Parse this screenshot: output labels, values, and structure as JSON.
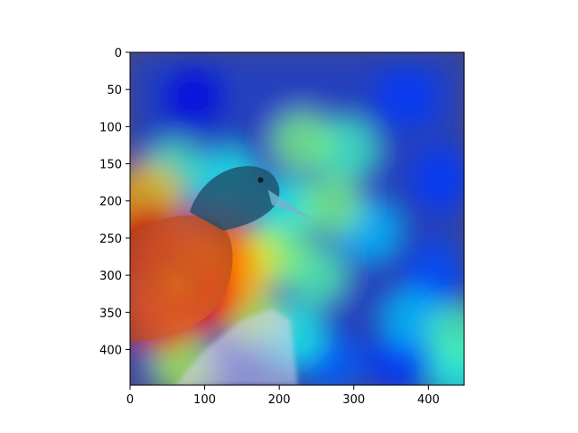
{
  "chart_data": {
    "type": "heatmap",
    "title": "",
    "xlabel": "",
    "ylabel": "",
    "xlim": [
      0,
      448
    ],
    "ylim": [
      448,
      0
    ],
    "x_ticks": [
      0,
      100,
      200,
      300,
      400
    ],
    "y_ticks": [
      0,
      50,
      100,
      150,
      200,
      250,
      300,
      350,
      400
    ],
    "x_tick_labels": [
      "0",
      "100",
      "200",
      "300",
      "400"
    ],
    "y_tick_labels": [
      "0",
      "50",
      "100",
      "150",
      "200",
      "250",
      "300",
      "350",
      "400"
    ],
    "grid": false,
    "legend": "none",
    "colormap": "jet",
    "image_content": "bird",
    "overlay_alpha": 0.5,
    "colors": {
      "background": "#ffffff",
      "axes": "#000000",
      "image_base": "#4a4a7a",
      "bird_head": "#1f4f6a",
      "bird_beak": "#6fb6d0",
      "bird_body": "#e0782a",
      "perch": "#d9d4ea"
    },
    "heat_hotspots": [
      {
        "x": 60,
        "y": 300,
        "intensity": 1.0
      },
      {
        "x": 25,
        "y": 260,
        "intensity": 0.92
      },
      {
        "x": 95,
        "y": 330,
        "intensity": 0.88
      },
      {
        "x": 40,
        "y": 350,
        "intensity": 0.85
      },
      {
        "x": 110,
        "y": 260,
        "intensity": 0.78
      },
      {
        "x": 130,
        "y": 300,
        "intensity": 0.72
      },
      {
        "x": 20,
        "y": 200,
        "intensity": 0.7
      },
      {
        "x": 160,
        "y": 280,
        "intensity": 0.6
      },
      {
        "x": 160,
        "y": 350,
        "intensity": 0.55
      },
      {
        "x": 200,
        "y": 270,
        "intensity": 0.5
      },
      {
        "x": 250,
        "y": 300,
        "intensity": 0.46
      },
      {
        "x": 270,
        "y": 205,
        "intensity": 0.5
      },
      {
        "x": 230,
        "y": 120,
        "intensity": 0.5
      },
      {
        "x": 290,
        "y": 130,
        "intensity": 0.44
      },
      {
        "x": 60,
        "y": 160,
        "intensity": 0.45
      },
      {
        "x": 130,
        "y": 170,
        "intensity": 0.4
      },
      {
        "x": 210,
        "y": 210,
        "intensity": 0.4
      },
      {
        "x": 320,
        "y": 240,
        "intensity": 0.32
      },
      {
        "x": 220,
        "y": 380,
        "intensity": 0.4
      },
      {
        "x": 380,
        "y": 360,
        "intensity": 0.32
      },
      {
        "x": 440,
        "y": 380,
        "intensity": 0.45
      },
      {
        "x": 440,
        "y": 430,
        "intensity": 0.4
      },
      {
        "x": 70,
        "y": 420,
        "intensity": 0.55
      }
    ],
    "cold_regions": [
      {
        "x": 85,
        "y": 60,
        "intensity": 0.1
      },
      {
        "x": 90,
        "y": 180,
        "intensity": 0.12
      },
      {
        "x": 370,
        "y": 60,
        "intensity": 0.18
      },
      {
        "x": 420,
        "y": 170,
        "intensity": 0.18
      },
      {
        "x": 410,
        "y": 300,
        "intensity": 0.2
      },
      {
        "x": 360,
        "y": 420,
        "intensity": 0.18
      },
      {
        "x": 270,
        "y": 420,
        "intensity": 0.22
      }
    ]
  }
}
